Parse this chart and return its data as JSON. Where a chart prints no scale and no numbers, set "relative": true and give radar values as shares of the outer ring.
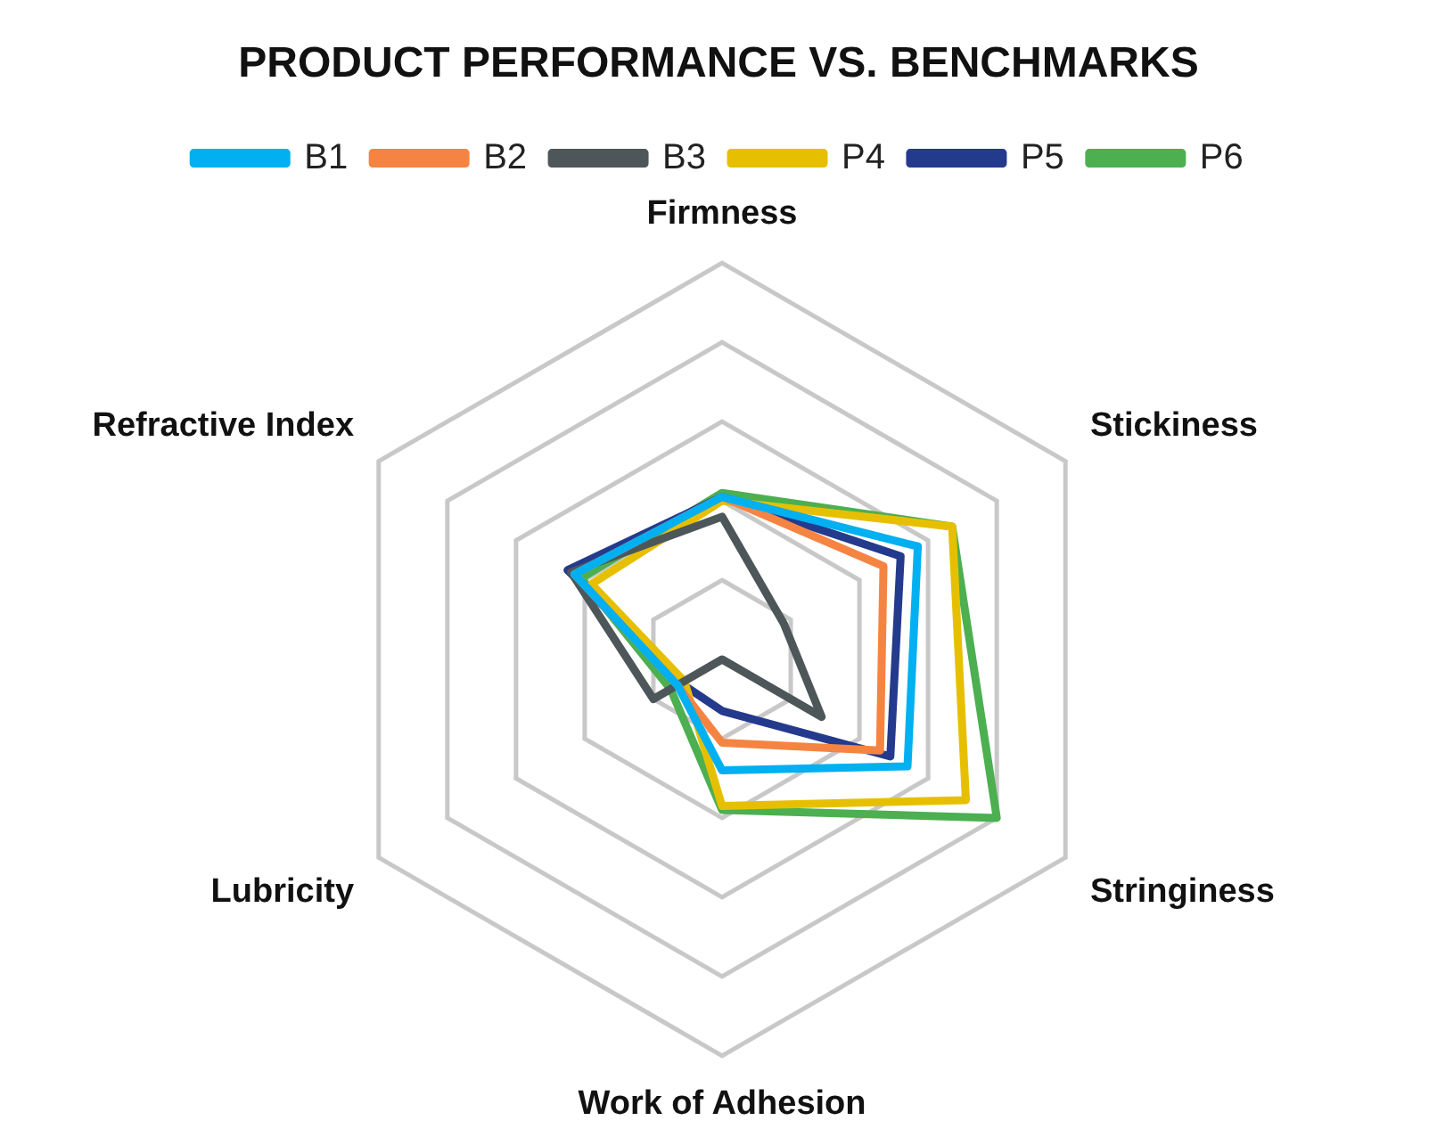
{
  "chart_data": {
    "type": "radar",
    "title": "PRODUCT PERFORMANCE VS. BENCHMARKS",
    "categories": [
      "Firmness",
      "Stickiness",
      "Stringiness",
      "Work of Adhesion",
      "Lubricity",
      "Refractive Index"
    ],
    "relative": true,
    "legend": "top",
    "marker": "none",
    "grid": true,
    "series": [
      {
        "name": "B1",
        "color": "#00b0f0",
        "values": [
          0.41,
          0.57,
          0.54,
          0.28,
          0.13,
          0.43
        ]
      },
      {
        "name": "B2",
        "color": "#f58442",
        "values": [
          0.41,
          0.47,
          0.46,
          0.21,
          0.13,
          0.43
        ]
      },
      {
        "name": "B3",
        "color": "#4d5659",
        "values": [
          0.36,
          0.18,
          0.29,
          0,
          0.2,
          0.44
        ]
      },
      {
        "name": "P4",
        "color": "#e6c000",
        "values": [
          0.4,
          0.67,
          0.71,
          0.37,
          0.11,
          0.38
        ]
      },
      {
        "name": "P5",
        "color": "#243a8c",
        "values": [
          0.41,
          0.52,
          0.49,
          0.13,
          0.12,
          0.45
        ]
      },
      {
        "name": "P6",
        "color": "#4caf50",
        "values": [
          0.42,
          0.67,
          0.8,
          0.38,
          0.15,
          0.41
        ]
      }
    ]
  }
}
